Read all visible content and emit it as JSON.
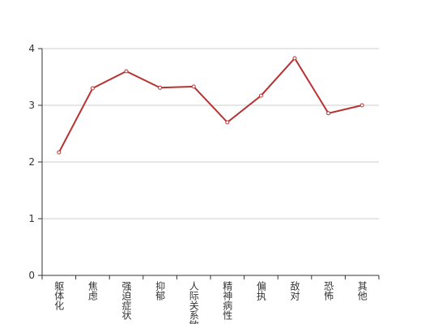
{
  "chart_data": {
    "type": "line",
    "categories": [
      "躯体化",
      "焦虑",
      "强迫症状",
      "抑郁",
      "人际关系敏感",
      "精神病性",
      "偏执",
      "敌对",
      "恐怖",
      "其他"
    ],
    "values": [
      2.17,
      3.3,
      3.6,
      3.31,
      3.33,
      2.7,
      3.17,
      3.83,
      2.86,
      3.0
    ],
    "color": "#b83232",
    "ylim": [
      0,
      4
    ],
    "yticks": [
      0,
      1,
      2,
      3,
      4
    ],
    "grid": true
  }
}
